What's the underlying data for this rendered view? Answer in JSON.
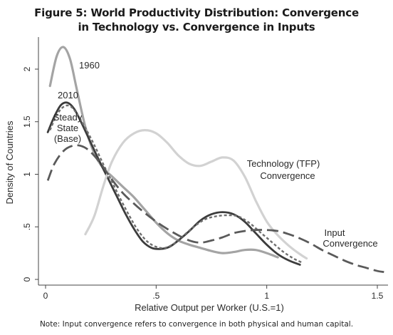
{
  "title_line1": "Figure 5: World Productivity Distribution: Convergence",
  "title_line2": "in Technology vs. Convergence in Inputs",
  "note": "Note: Input convergence refers to convergence in both physical and human capital.",
  "chart_data": {
    "type": "line",
    "xlabel": "Relative Output per Worker (U.S.=1)",
    "ylabel": "Density of Countries",
    "xlim": [
      -0.02,
      1.56
    ],
    "ylim": [
      -0.05,
      2.27
    ],
    "xticks": [
      {
        "value": 0,
        "label": "0"
      },
      {
        "value": 0.5,
        "label": ".5"
      },
      {
        "value": 1,
        "label": "1"
      },
      {
        "value": 1.5,
        "label": "1.5"
      }
    ],
    "yticks": [
      {
        "value": 0,
        "label": "0"
      },
      {
        "value": 0.5,
        "label": ".5"
      },
      {
        "value": 1,
        "label": "1"
      },
      {
        "value": 1.5,
        "label": "1.5"
      },
      {
        "value": 2,
        "label": "2"
      }
    ],
    "grid": false,
    "series": [
      {
        "key": "1960",
        "color": "#a4a4a4",
        "dash": "",
        "width": 3.2,
        "points": [
          [
            0.02,
            1.84
          ],
          [
            0.05,
            2.12
          ],
          [
            0.08,
            2.21
          ],
          [
            0.11,
            2.1
          ],
          [
            0.14,
            1.82
          ],
          [
            0.18,
            1.45
          ],
          [
            0.22,
            1.2
          ],
          [
            0.26,
            1.06
          ],
          [
            0.3,
            0.98
          ],
          [
            0.35,
            0.88
          ],
          [
            0.4,
            0.78
          ],
          [
            0.45,
            0.66
          ],
          [
            0.5,
            0.54
          ],
          [
            0.55,
            0.44
          ],
          [
            0.6,
            0.37
          ],
          [
            0.65,
            0.33
          ],
          [
            0.7,
            0.3
          ],
          [
            0.75,
            0.27
          ],
          [
            0.8,
            0.25
          ],
          [
            0.85,
            0.26
          ],
          [
            0.9,
            0.28
          ],
          [
            0.95,
            0.28
          ],
          [
            1.0,
            0.25
          ],
          [
            1.05,
            0.21
          ]
        ]
      },
      {
        "key": "2010",
        "color": "#3c3c3c",
        "dash": "",
        "width": 2.8,
        "points": [
          [
            0.01,
            1.4
          ],
          [
            0.04,
            1.55
          ],
          [
            0.07,
            1.66
          ],
          [
            0.1,
            1.68
          ],
          [
            0.13,
            1.62
          ],
          [
            0.16,
            1.5
          ],
          [
            0.2,
            1.32
          ],
          [
            0.24,
            1.14
          ],
          [
            0.28,
            0.97
          ],
          [
            0.32,
            0.8
          ],
          [
            0.36,
            0.63
          ],
          [
            0.4,
            0.48
          ],
          [
            0.44,
            0.36
          ],
          [
            0.48,
            0.3
          ],
          [
            0.52,
            0.29
          ],
          [
            0.56,
            0.31
          ],
          [
            0.6,
            0.37
          ],
          [
            0.65,
            0.46
          ],
          [
            0.7,
            0.56
          ],
          [
            0.75,
            0.62
          ],
          [
            0.8,
            0.64
          ],
          [
            0.85,
            0.62
          ],
          [
            0.9,
            0.55
          ],
          [
            0.95,
            0.44
          ],
          [
            1.0,
            0.33
          ],
          [
            1.05,
            0.24
          ],
          [
            1.1,
            0.18
          ],
          [
            1.15,
            0.14
          ]
        ]
      },
      {
        "key": "steady_state",
        "color": "#6e6e6e",
        "dash": "4 3",
        "width": 2.4,
        "points": [
          [
            0.02,
            1.42
          ],
          [
            0.05,
            1.56
          ],
          [
            0.08,
            1.64
          ],
          [
            0.11,
            1.65
          ],
          [
            0.14,
            1.58
          ],
          [
            0.18,
            1.44
          ],
          [
            0.22,
            1.28
          ],
          [
            0.26,
            1.1
          ],
          [
            0.3,
            0.93
          ],
          [
            0.34,
            0.76
          ],
          [
            0.38,
            0.6
          ],
          [
            0.42,
            0.46
          ],
          [
            0.46,
            0.36
          ],
          [
            0.5,
            0.31
          ],
          [
            0.54,
            0.3
          ],
          [
            0.58,
            0.34
          ],
          [
            0.62,
            0.41
          ],
          [
            0.67,
            0.5
          ],
          [
            0.72,
            0.57
          ],
          [
            0.77,
            0.6
          ],
          [
            0.82,
            0.61
          ],
          [
            0.87,
            0.6
          ],
          [
            0.92,
            0.54
          ],
          [
            0.97,
            0.45
          ],
          [
            1.02,
            0.36
          ],
          [
            1.07,
            0.27
          ],
          [
            1.12,
            0.2
          ],
          [
            1.16,
            0.16
          ]
        ]
      },
      {
        "key": "technology",
        "color": "#d2d2d2",
        "dash": "",
        "width": 3.2,
        "points": [
          [
            0.18,
            0.43
          ],
          [
            0.22,
            0.6
          ],
          [
            0.26,
            0.88
          ],
          [
            0.3,
            1.12
          ],
          [
            0.35,
            1.3
          ],
          [
            0.4,
            1.39
          ],
          [
            0.45,
            1.42
          ],
          [
            0.5,
            1.39
          ],
          [
            0.55,
            1.3
          ],
          [
            0.6,
            1.18
          ],
          [
            0.65,
            1.1
          ],
          [
            0.7,
            1.08
          ],
          [
            0.75,
            1.12
          ],
          [
            0.8,
            1.16
          ],
          [
            0.85,
            1.13
          ],
          [
            0.9,
            0.98
          ],
          [
            0.95,
            0.75
          ],
          [
            1.0,
            0.55
          ],
          [
            1.05,
            0.42
          ],
          [
            1.1,
            0.32
          ],
          [
            1.15,
            0.24
          ],
          [
            1.18,
            0.2
          ]
        ]
      },
      {
        "key": "input",
        "color": "#5a5a5a",
        "dash": "16 7",
        "width": 2.8,
        "points": [
          [
            0.01,
            0.94
          ],
          [
            0.04,
            1.1
          ],
          [
            0.08,
            1.22
          ],
          [
            0.12,
            1.27
          ],
          [
            0.16,
            1.27
          ],
          [
            0.2,
            1.22
          ],
          [
            0.25,
            1.1
          ],
          [
            0.3,
            0.95
          ],
          [
            0.35,
            0.82
          ],
          [
            0.4,
            0.72
          ],
          [
            0.45,
            0.63
          ],
          [
            0.5,
            0.55
          ],
          [
            0.55,
            0.48
          ],
          [
            0.6,
            0.42
          ],
          [
            0.65,
            0.37
          ],
          [
            0.7,
            0.35
          ],
          [
            0.75,
            0.37
          ],
          [
            0.8,
            0.4
          ],
          [
            0.85,
            0.44
          ],
          [
            0.9,
            0.46
          ],
          [
            0.95,
            0.47
          ],
          [
            1.0,
            0.47
          ],
          [
            1.05,
            0.46
          ],
          [
            1.1,
            0.43
          ],
          [
            1.15,
            0.39
          ],
          [
            1.2,
            0.34
          ],
          [
            1.25,
            0.28
          ],
          [
            1.3,
            0.23
          ],
          [
            1.35,
            0.18
          ],
          [
            1.4,
            0.14
          ],
          [
            1.45,
            0.11
          ],
          [
            1.5,
            0.08
          ],
          [
            1.53,
            0.07
          ]
        ]
      }
    ],
    "annotations": {
      "s1960": "1960",
      "s2010": "2010",
      "steady_1": "Steady",
      "steady_2": "State",
      "steady_3": "(Base)",
      "tech_1": "Technology (TFP)",
      "tech_2": "Convergence",
      "input_1": "Input",
      "input_2": "Convergence"
    }
  }
}
